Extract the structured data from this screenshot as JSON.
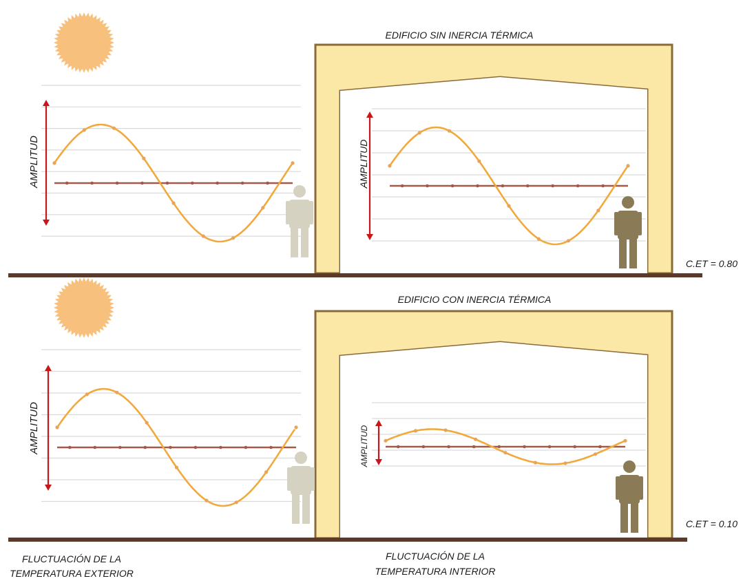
{
  "top_panel": {
    "title": "EDIFICIO SIN INERCIA TÉRMICA",
    "coefficient_label": "C.ET = 0.80",
    "outdoor_chart": {
      "axis_label": "AMPLITUD",
      "wave_amplitude": 1.0
    },
    "indoor_chart": {
      "axis_label": "AMPLITUD",
      "wave_amplitude": 1.0
    }
  },
  "bottom_panel": {
    "title": "EDIFICIO CON INERCIA TÉRMICA",
    "coefficient_label": "C.ET = 0.10",
    "outdoor_chart": {
      "axis_label": "AMPLITUD",
      "wave_amplitude": 1.0
    },
    "indoor_chart": {
      "axis_label": "AMPLITUD",
      "wave_amplitude": 0.3
    }
  },
  "captions": {
    "exterior_line1": "FLUCTUACIÓN DE LA",
    "exterior_line2": "TEMPERATURA EXTERIOR",
    "interior_line1": "FLUCTUACIÓN DE LA",
    "interior_line2": "TEMPERATURA INTERIOR"
  },
  "colors": {
    "sun": "#f7c07c",
    "wave": "#f2a93b",
    "wave_marker": "#e8a45a",
    "mean_line": "#a05a48",
    "arrow": "#c8161d",
    "wall_fill": "#fbe7a6",
    "wall_border": "#8b6a3a",
    "ground": "#5a3a2a",
    "person_outside": "#d6d2c2",
    "person_inside": "#8a7a55",
    "gridline": "#d9d9d9"
  },
  "icons": [
    "sun-icon",
    "person-icon"
  ]
}
